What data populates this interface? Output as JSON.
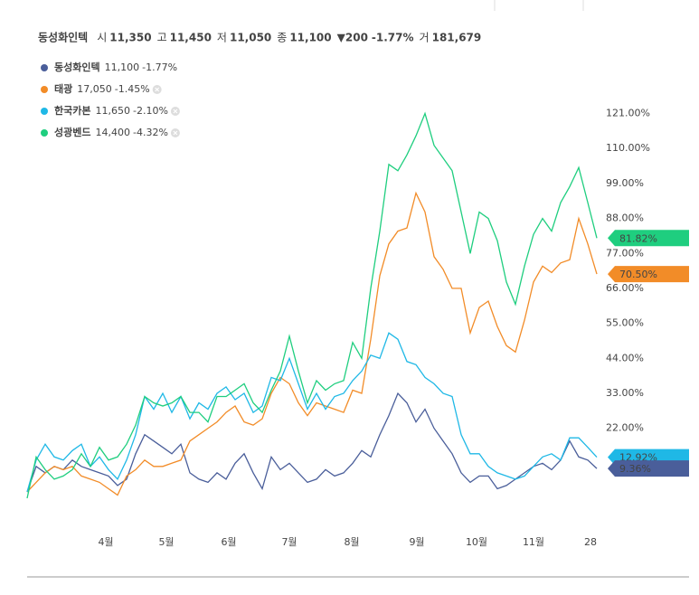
{
  "quote": {
    "name": "동성화인텍",
    "fields": [
      {
        "label": "시",
        "value": "11,350"
      },
      {
        "label": "고",
        "value": "11,450"
      },
      {
        "label": "저",
        "value": "11,050"
      },
      {
        "label": "종",
        "value": "11,100"
      }
    ],
    "change": "▼200",
    "change_pct": "-1.77%",
    "volume_label": "거",
    "volume": "181,679"
  },
  "chart_data": {
    "type": "line",
    "x": [
      0,
      1,
      2,
      3,
      4,
      5,
      6,
      7,
      8,
      9,
      10,
      11,
      12,
      13,
      14,
      15,
      16,
      17,
      18,
      19,
      20,
      21,
      22,
      23,
      24,
      25,
      26,
      27,
      28,
      29,
      30,
      31,
      32,
      33,
      34,
      35,
      36,
      37,
      38,
      39,
      40,
      41,
      42,
      43,
      44,
      45,
      46,
      47,
      48,
      49,
      50,
      51,
      52,
      53,
      54,
      55,
      56,
      57,
      58,
      59,
      60,
      61,
      62,
      63
    ],
    "xlim": [
      0,
      63
    ],
    "xticks": [
      {
        "value": 8.7,
        "label": "4월"
      },
      {
        "value": 15.4,
        "label": "5월"
      },
      {
        "value": 22.3,
        "label": "6월"
      },
      {
        "value": 29,
        "label": "7월"
      },
      {
        "value": 35.9,
        "label": "8월"
      },
      {
        "value": 43.1,
        "label": "9월"
      },
      {
        "value": 49.7,
        "label": "10월"
      },
      {
        "value": 56,
        "label": "11월"
      },
      {
        "value": 62.3,
        "label": "28"
      }
    ],
    "ylim": [
      0,
      124
    ],
    "yticks": [
      {
        "value": 22,
        "label": "22.00%"
      },
      {
        "value": 33,
        "label": "33.00%"
      },
      {
        "value": 44,
        "label": "44.00%"
      },
      {
        "value": 55,
        "label": "55.00%"
      },
      {
        "value": 66,
        "label": "66.00%"
      },
      {
        "value": 77,
        "label": "77.00%"
      },
      {
        "value": 88,
        "label": "88.00%"
      },
      {
        "value": 99,
        "label": "99.00%"
      },
      {
        "value": 110,
        "label": "110.00%"
      },
      {
        "value": 121,
        "label": "121.00%"
      }
    ],
    "series": [
      {
        "name": "동성화인텍",
        "price": "11,100",
        "change": "-1.77%",
        "color": "#4a5e9a",
        "last_label": "9.36%",
        "values": [
          2,
          10,
          8,
          10,
          9,
          12,
          10,
          9,
          8,
          7,
          4,
          6,
          14,
          20,
          18,
          16,
          14,
          17,
          8,
          6,
          5,
          8,
          6,
          11,
          14,
          8,
          3,
          13,
          9,
          11,
          8,
          5,
          6,
          9,
          7,
          8,
          11,
          15,
          13,
          20,
          26,
          33,
          30,
          24,
          28,
          22,
          18,
          14,
          8,
          5,
          7,
          7,
          3,
          4,
          6,
          8,
          10,
          11,
          9,
          12,
          18,
          13,
          12,
          9.36
        ]
      },
      {
        "name": "태광",
        "price": "17,050",
        "change": "-1.45%",
        "color": "#f28c28",
        "last_label": "70.50%",
        "values": [
          2,
          5,
          8,
          10,
          9,
          10,
          7,
          6,
          5,
          3,
          1,
          7,
          9,
          12,
          10,
          10,
          11,
          12,
          18,
          20,
          22,
          24,
          27,
          29,
          24,
          23,
          25,
          33,
          38,
          36,
          30,
          26,
          30,
          29,
          28,
          27,
          34,
          33,
          50,
          70,
          80,
          84,
          85,
          96,
          90,
          76,
          72,
          66,
          66,
          52,
          60,
          62,
          54,
          48,
          46,
          56,
          68,
          73,
          71,
          74,
          75,
          88,
          80,
          70.5
        ]
      },
      {
        "name": "한국카본",
        "price": "11,650",
        "change": "-2.10%",
        "color": "#1fb8e6",
        "last_label": "12.92%",
        "values": [
          2,
          12,
          17,
          13,
          12,
          15,
          17,
          10,
          13,
          9,
          6,
          12,
          20,
          32,
          28,
          33,
          27,
          32,
          25,
          30,
          28,
          33,
          35,
          31,
          33,
          27,
          29,
          38,
          37,
          44,
          36,
          28,
          33,
          28,
          32,
          33,
          37,
          40,
          45,
          44,
          52,
          50,
          43,
          42,
          38,
          36,
          33,
          32,
          20,
          14,
          14,
          10,
          8,
          7,
          6,
          7,
          10,
          13,
          14,
          12,
          19,
          19,
          16,
          12.92
        ]
      },
      {
        "name": "성광벤드",
        "price": "14,400",
        "change": "-4.32%",
        "color": "#1fce7f",
        "last_label": "81.82%",
        "values": [
          0,
          13,
          9,
          6,
          7,
          9,
          14,
          10,
          16,
          12,
          13,
          17,
          23,
          32,
          30,
          29,
          30,
          32,
          27,
          27,
          24,
          32,
          32,
          34,
          36,
          30,
          27,
          34,
          40,
          51,
          40,
          30,
          37,
          34,
          36,
          37,
          49,
          44,
          66,
          84,
          105,
          103,
          108,
          114,
          121,
          111,
          107,
          103,
          90,
          77,
          90,
          88,
          81,
          68,
          61,
          73,
          83,
          88,
          84,
          93,
          98,
          104,
          93,
          81.82
        ]
      }
    ]
  }
}
